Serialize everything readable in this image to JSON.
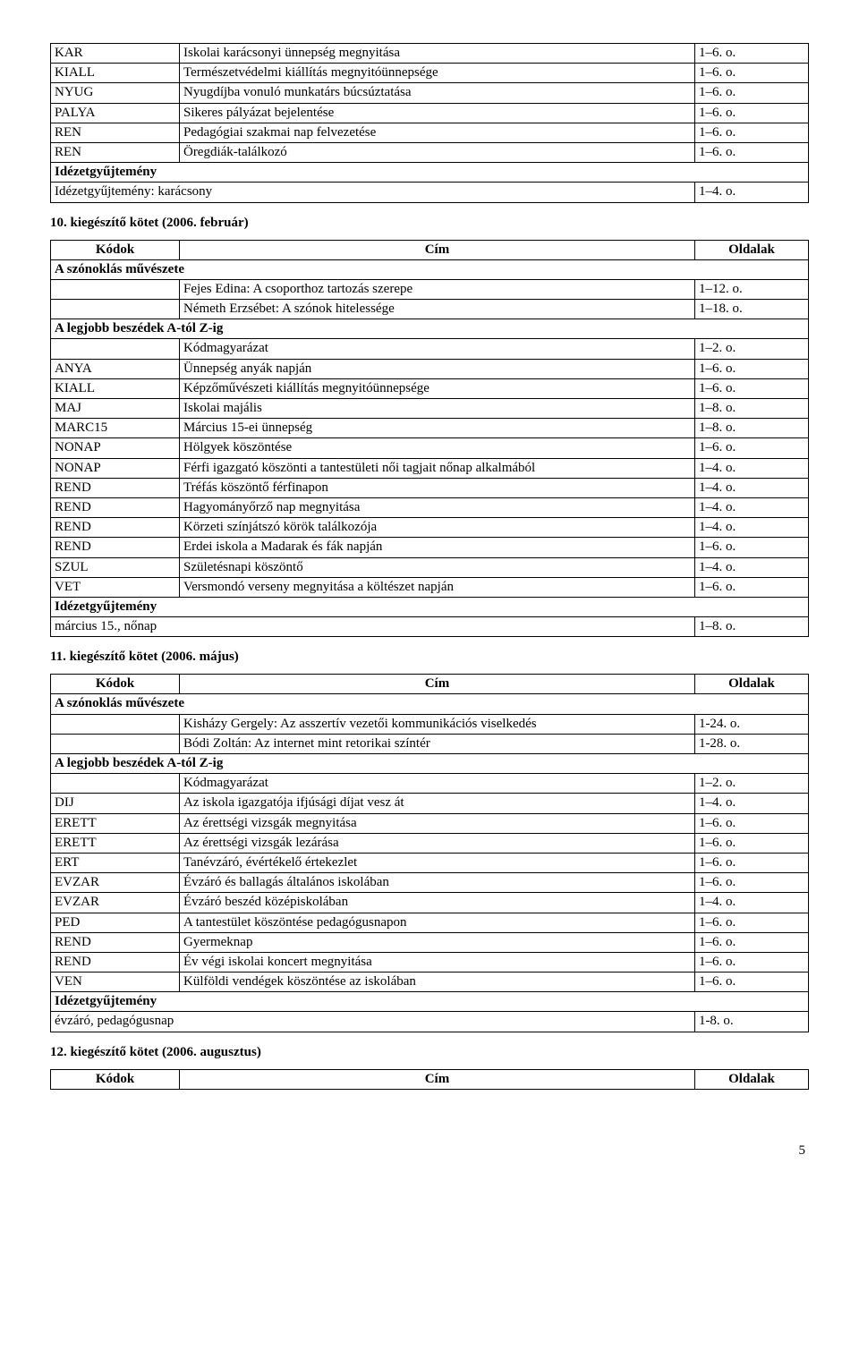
{
  "tables": {
    "t0": {
      "rows": [
        {
          "c": "KAR",
          "t": "Iskolai karácsonyi ünnepség megnyitása",
          "p": "1–6. o."
        },
        {
          "c": "KIALL",
          "t": "Természetvédelmi kiállítás megnyitóünnepsége",
          "p": "1–6. o."
        },
        {
          "c": "NYUG",
          "t": "Nyugdíjba vonuló munkatárs búcsúztatása",
          "p": "1–6. o."
        },
        {
          "c": "PALYA",
          "t": "Sikeres pályázat bejelentése",
          "p": "1–6. o."
        },
        {
          "c": "REN",
          "t": "Pedagógiai szakmai nap felvezetése",
          "p": "1–6. o."
        },
        {
          "c": "REN",
          "t": "Öregdiák-találkozó",
          "p": "1–6. o."
        }
      ],
      "section": "Idézetgyűjtemény",
      "section_row": {
        "t": "Idézetgyűjtemény: karácsony",
        "p": "1–4. o."
      }
    }
  },
  "h10": "10. kiegészítő kötet (2006. február)",
  "t1": {
    "header": {
      "c": "Kódok",
      "t": "Cím",
      "p": "Oldalak"
    },
    "sec1": "A szónoklás művészete",
    "sec1rows": [
      {
        "t": "Fejes Edina: A csoporthoz tartozás szerepe",
        "p": "1–12. o."
      },
      {
        "t": "Németh Erzsébet: A szónok hitelessége",
        "p": "1–18. o."
      }
    ],
    "sec2": "A legjobb beszédek A-tól Z-ig",
    "sec2rows": [
      {
        "c": "",
        "t": "Kódmagyarázat",
        "p": "1–2. o."
      },
      {
        "c": "ANYA",
        "t": "Ünnepség anyák napján",
        "p": "1–6. o."
      },
      {
        "c": "KIALL",
        "t": "Képzőművészeti kiállítás megnyitóünnepsége",
        "p": "1–6. o."
      },
      {
        "c": "MAJ",
        "t": "Iskolai majális",
        "p": "1–8. o."
      },
      {
        "c": "MARC15",
        "t": "Március 15-ei ünnepség",
        "p": "1–8. o."
      },
      {
        "c": "NONAP",
        "t": "Hölgyek köszöntése",
        "p": "1–6. o."
      },
      {
        "c": "NONAP",
        "t": "Férfi igazgató köszönti a tantestületi női tagjait nőnap alkalmából",
        "p": "1–4. o."
      },
      {
        "c": "REND",
        "t": "Tréfás köszöntő férfinapon",
        "p": "1–4. o."
      },
      {
        "c": "REND",
        "t": "Hagyományőrző nap megnyitása",
        "p": "1–4. o."
      },
      {
        "c": "REND",
        "t": "Körzeti színjátszó körök találkozója",
        "p": "1–4. o."
      },
      {
        "c": "REND",
        "t": "Erdei iskola a Madarak és fák napján",
        "p": "1–6. o."
      },
      {
        "c": "SZUL",
        "t": "Születésnapi köszöntő",
        "p": "1–4. o."
      },
      {
        "c": "VET",
        "t": "Versmondó verseny megnyitása a költészet napján",
        "p": "1–6. o."
      }
    ],
    "sec3": "Idézetgyűjtemény",
    "sec3row": {
      "t": "március 15., nőnap",
      "p": "1–8. o."
    }
  },
  "h11": "11. kiegészítő kötet (2006. május)",
  "t2": {
    "header": {
      "c": "Kódok",
      "t": "Cím",
      "p": "Oldalak"
    },
    "sec1": "A szónoklás művészete",
    "sec1rows": [
      {
        "t": "Kisházy Gergely: Az asszertív vezetői kommunikációs viselkedés",
        "p": "1-24. o."
      },
      {
        "t": "Bódi Zoltán: Az internet mint retorikai színtér",
        "p": "1-28. o."
      }
    ],
    "sec2": "A legjobb beszédek A-tól Z-ig",
    "sec2rows": [
      {
        "c": "",
        "t": "Kódmagyarázat",
        "p": "1–2. o."
      },
      {
        "c": "DIJ",
        "t": "Az iskola igazgatója ifjúsági díjat vesz át",
        "p": "1–4. o."
      },
      {
        "c": "ERETT",
        "t": "Az érettségi vizsgák megnyitása",
        "p": "1–6. o."
      },
      {
        "c": "ERETT",
        "t": "Az érettségi vizsgák lezárása",
        "p": "1–6. o."
      },
      {
        "c": "ERT",
        "t": "Tanévzáró, évértékelő értekezlet",
        "p": "1–6. o."
      },
      {
        "c": "EVZAR",
        "t": "Évzáró és ballagás általános iskolában",
        "p": "1–6. o."
      },
      {
        "c": "EVZAR",
        "t": "Évzáró beszéd középiskolában",
        "p": "1–4. o."
      },
      {
        "c": "PED",
        "t": "A tantestület köszöntése pedagógusnapon",
        "p": "1–6. o."
      },
      {
        "c": "REND",
        "t": "Gyermeknap",
        "p": "1–6. o."
      },
      {
        "c": "REND",
        "t": "Év végi iskolai koncert megnyitása",
        "p": "1–6. o."
      },
      {
        "c": "VEN",
        "t": "Külföldi vendégek köszöntése az iskolában",
        "p": "1–6. o."
      }
    ],
    "sec3": "Idézetgyűjtemény",
    "sec3row": {
      "t": "évzáró, pedagógusnap",
      "p": "1-8. o."
    }
  },
  "h12": "12. kiegészítő kötet (2006. augusztus)",
  "t3header": {
    "c": "Kódok",
    "t": "Cím",
    "p": "Oldalak"
  },
  "pagenum": "5"
}
